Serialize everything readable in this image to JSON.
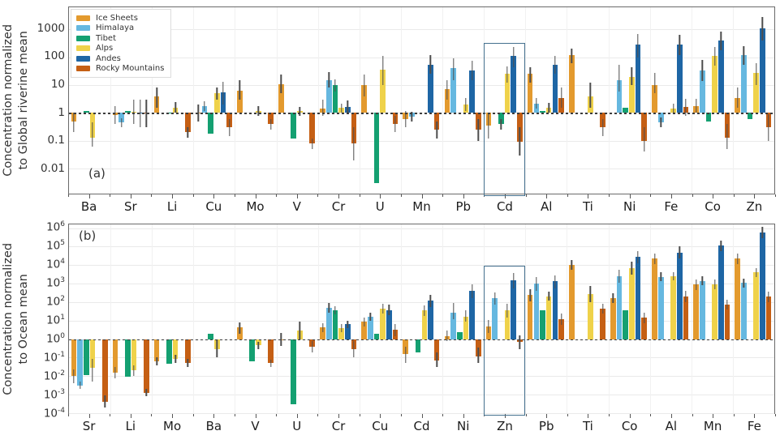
{
  "legend": {
    "items": [
      {
        "label": "Ice Sheets",
        "color": "#E39A2E"
      },
      {
        "label": "Himalaya",
        "color": "#66B8E0"
      },
      {
        "label": "Tibet",
        "color": "#14A071"
      },
      {
        "label": "Alps",
        "color": "#EFD24A"
      },
      {
        "label": "Andes",
        "color": "#1E66A5"
      },
      {
        "label": "Rocky Mountains",
        "color": "#C55F14"
      }
    ]
  },
  "chart_data": [
    {
      "type": "bar",
      "panel_label": "(a)",
      "ylabel": [
        "Concentration normalized",
        "to Global riverine mean"
      ],
      "log_scale": true,
      "baseline_value": 1,
      "y_range_exp": [
        -2.9,
        3.8
      ],
      "tick_style": "plain",
      "yticks": [
        {
          "text": "1000",
          "exp": 3
        },
        {
          "text": "100",
          "exp": 2
        },
        {
          "text": "10",
          "exp": 1
        },
        {
          "text": "1",
          "exp": 0
        },
        {
          "text": "0.1",
          "exp": -1
        },
        {
          "text": "0.01",
          "exp": -2
        }
      ],
      "categories": [
        "Ba",
        "Sr",
        "Li",
        "Cu",
        "Mo",
        "V",
        "Cr",
        "U",
        "Mn",
        "Pb",
        "Cd",
        "Al",
        "Ti",
        "Ni",
        "Fe",
        "Co",
        "Zn"
      ],
      "series": [
        {
          "name": "Ice Sheets",
          "color": "#E39A2E",
          "values": [
            [
              0.5,
              0.2,
              1.0
            ],
            [
              0.85,
              0.4,
              1.8
            ],
            [
              4,
              1.5,
              8.5
            ],
            [
              1.0,
              0.5,
              2.0
            ],
            [
              6.5,
              3,
              15
            ],
            [
              11,
              5,
              24
            ],
            [
              1.4,
              0.8,
              3
            ],
            [
              10,
              4,
              24
            ],
            [
              0.6,
              0.3,
              1.2
            ],
            [
              7,
              3,
              15
            ],
            [
              0.35,
              0.12,
              0.9
            ],
            [
              25,
              12,
              45
            ],
            [
              120,
              60,
              200
            ],
            null,
            [
              10,
              5,
              28
            ],
            [
              1.8,
              1.0,
              3.2
            ],
            [
              3.5,
              1.5,
              8
            ]
          ]
        },
        {
          "name": "Himalaya",
          "color": "#66B8E0",
          "values": [
            null,
            [
              0.45,
              0.3,
              0.65
            ],
            null,
            [
              1.8,
              1.2,
              2.6
            ],
            null,
            null,
            [
              15,
              8,
              30
            ],
            null,
            [
              0.75,
              0.5,
              1.1
            ],
            [
              40,
              15,
              90
            ],
            null,
            [
              2.2,
              1.4,
              3.4
            ],
            null,
            [
              15,
              6,
              55
            ],
            [
              0.45,
              0.3,
              0.7
            ],
            [
              33,
              14,
              80
            ],
            [
              120,
              55,
              260
            ]
          ]
        },
        {
          "name": "Tibet",
          "color": "#14A071",
          "values": [
            [
              1.15,
              null,
              null
            ],
            [
              1.15,
              null,
              null
            ],
            [
              0.95,
              null,
              null
            ],
            [
              0.18,
              null,
              null
            ],
            null,
            [
              0.12,
              null,
              null
            ],
            [
              10,
              6,
              16
            ],
            [
              0.003,
              null,
              null
            ],
            null,
            null,
            [
              0.4,
              0.25,
              0.6
            ],
            [
              1.2,
              null,
              null
            ],
            null,
            [
              1.5,
              null,
              null
            ],
            null,
            [
              0.5,
              null,
              null
            ],
            [
              0.6,
              null,
              null
            ]
          ]
        },
        {
          "name": "Alps",
          "color": "#EFD24A",
          "values": [
            [
              0.13,
              0.06,
              0.45
            ],
            [
              1.1,
              0.4,
              3
            ],
            [
              1.5,
              1.0,
              2.5
            ],
            [
              5,
              3,
              8
            ],
            [
              1.2,
              0.8,
              1.8
            ],
            [
              1.15,
              0.8,
              1.6
            ],
            [
              1.5,
              1.0,
              2.2
            ],
            [
              35,
              10,
              110
            ],
            null,
            [
              2,
              1.2,
              3.5
            ],
            [
              25,
              12,
              48
            ],
            [
              1.5,
              1.0,
              2.3
            ],
            [
              4,
              1.5,
              12
            ],
            [
              20,
              10,
              45
            ],
            [
              1.4,
              0.9,
              2.2
            ],
            [
              110,
              50,
              240
            ],
            [
              28,
              10,
              60
            ]
          ]
        },
        {
          "name": "Andes",
          "color": "#1E66A5",
          "values": [
            null,
            [
              1.0,
              0.3,
              3
            ],
            null,
            [
              5.5,
              2,
              13
            ],
            null,
            null,
            [
              1.7,
              1.0,
              2.8
            ],
            null,
            [
              55,
              25,
              120
            ],
            [
              33,
              15,
              75
            ],
            [
              110,
              45,
              230
            ],
            [
              55,
              25,
              115
            ],
            null,
            [
              280,
              100,
              700
            ],
            [
              290,
              120,
              650
            ],
            [
              400,
              180,
              850
            ],
            [
              1100,
              400,
              2900
            ]
          ]
        },
        {
          "name": "Rocky Mountains",
          "color": "#C55F14",
          "values": [
            null,
            [
              1.0,
              0.3,
              3
            ],
            [
              0.2,
              0.13,
              0.3
            ],
            [
              0.3,
              0.15,
              0.6
            ],
            [
              0.4,
              0.25,
              0.6
            ],
            [
              0.08,
              0.05,
              0.12
            ],
            [
              0.08,
              0.02,
              0.3
            ],
            [
              0.4,
              0.2,
              0.8
            ],
            [
              0.25,
              0.12,
              0.5
            ],
            [
              0.25,
              0.1,
              0.6
            ],
            [
              0.09,
              0.03,
              0.3
            ],
            [
              3.5,
              1.5,
              8
            ],
            [
              0.3,
              0.15,
              0.6
            ],
            [
              0.1,
              0.04,
              0.3
            ],
            [
              1.6,
              0.8,
              3.2
            ],
            [
              0.13,
              0.05,
              0.4
            ],
            [
              0.3,
              0.1,
              0.9
            ]
          ]
        }
      ],
      "highlight": {
        "category": "Cd",
        "top_exp": 2.52,
        "color": "#44708e"
      },
      "show_legend": true
    },
    {
      "type": "bar",
      "panel_label": "(b)",
      "ylabel": [
        "Concentration normalized",
        "to Ocean mean"
      ],
      "log_scale": true,
      "baseline_value": 1,
      "y_range_exp": [
        -4.0,
        6.2
      ],
      "tick_style": "power",
      "yticks": [
        {
          "exp": 6,
          "sup": "6"
        },
        {
          "exp": 5,
          "sup": "5"
        },
        {
          "exp": 4,
          "sup": "4"
        },
        {
          "exp": 3,
          "sup": "3"
        },
        {
          "exp": 2,
          "sup": "2"
        },
        {
          "exp": 1,
          "sup": "1"
        },
        {
          "exp": 0,
          "sup": "0"
        },
        {
          "exp": -1,
          "sup": "-1"
        },
        {
          "exp": -2,
          "sup": "-2"
        },
        {
          "exp": -3,
          "sup": "-3"
        },
        {
          "exp": -4,
          "sup": "-4"
        }
      ],
      "categories": [
        "Sr",
        "Li",
        "Mo",
        "Ba",
        "V",
        "U",
        "Cr",
        "Cu",
        "Cd",
        "Ni",
        "Zn",
        "Pb",
        "Ti",
        "Co",
        "Al",
        "Mn",
        "Fe"
      ],
      "series": [
        {
          "name": "Ice Sheets",
          "color": "#E39A2E",
          "values": [
            [
              0.01,
              0.004,
              0.022
            ],
            [
              0.016,
              0.008,
              0.03
            ],
            [
              0.065,
              0.04,
              0.11
            ],
            null,
            [
              4.3,
              2,
              8
            ],
            [
              1.0,
              0.45,
              2.1
            ],
            [
              4.3,
              2.5,
              7.5
            ],
            [
              8.6,
              5,
              15
            ],
            [
              0.15,
              0.05,
              0.4
            ],
            [
              1.5,
              0.8,
              2.8
            ],
            [
              5,
              2.2,
              11
            ],
            [
              250,
              110,
              520
            ],
            [
              10000,
              5500,
              18000
            ],
            [
              160,
              90,
              290
            ],
            [
              22000,
              11000,
              42000
            ],
            [
              900,
              450,
              1700
            ],
            [
              22000,
              11000,
              42000
            ]
          ]
        },
        {
          "name": "Himalaya",
          "color": "#66B8E0",
          "values": [
            [
              0.003,
              0.002,
              0.005
            ],
            null,
            null,
            null,
            null,
            null,
            [
              50,
              28,
              90
            ],
            [
              17,
              10,
              28
            ],
            null,
            [
              28,
              12,
              90
            ],
            [
              160,
              70,
              340
            ],
            [
              1000,
              400,
              2300
            ],
            null,
            [
              2500,
              1100,
              5800
            ],
            [
              2300,
              1300,
              4000
            ],
            [
              1400,
              800,
              2400
            ],
            [
              1100,
              600,
              1900
            ]
          ]
        },
        {
          "name": "Tibet",
          "color": "#14A071",
          "values": [
            [
              0.012,
              null,
              null
            ],
            [
              0.009,
              null,
              null
            ],
            [
              0.045,
              null,
              null
            ],
            [
              2.0,
              null,
              null
            ],
            [
              0.065,
              null,
              null
            ],
            [
              0.0003,
              null,
              null
            ],
            [
              38,
              22,
              60
            ],
            [
              1.9,
              null,
              null
            ],
            [
              0.2,
              null,
              null
            ],
            [
              2.4,
              null,
              null
            ],
            null,
            [
              37,
              null,
              null
            ],
            null,
            [
              37,
              null,
              null
            ],
            null,
            null,
            null
          ]
        },
        {
          "name": "Alps",
          "color": "#EFD24A",
          "values": [
            [
              0.028,
              0.005,
              0.09
            ],
            [
              0.02,
              0.01,
              0.04
            ],
            [
              0.085,
              0.05,
              0.14
            ],
            [
              0.3,
              0.1,
              0.95
            ],
            [
              0.46,
              0.3,
              0.7
            ],
            [
              3,
              1,
              9
            ],
            [
              4,
              2.5,
              6.5
            ],
            [
              45,
              25,
              80
            ],
            [
              35,
              18,
              65
            ],
            [
              17,
              9,
              35
            ],
            [
              37,
              15,
              85
            ],
            [
              210,
              120,
              380
            ],
            [
              260,
              100,
              750
            ],
            [
              7000,
              3200,
              15000
            ],
            [
              2500,
              1500,
              4200
            ],
            [
              900,
              500,
              1600
            ],
            [
              4000,
              2200,
              7200
            ]
          ]
        },
        {
          "name": "Andes",
          "color": "#1E66A5",
          "values": [
            null,
            null,
            null,
            null,
            null,
            null,
            [
              6.4,
              4,
              10
            ],
            [
              38,
              20,
              70
            ],
            [
              120,
              55,
              240
            ],
            [
              400,
              160,
              950
            ],
            [
              1500,
              550,
              3800
            ],
            [
              1300,
              550,
              2900
            ],
            null,
            [
              27000,
              12000,
              58000
            ],
            [
              48000,
              22000,
              100000
            ],
            [
              110000,
              55000,
              210000
            ],
            [
              600000,
              280000,
              1200000
            ]
          ]
        },
        {
          "name": "Rocky Mountains",
          "color": "#C55F14",
          "values": [
            [
              0.0004,
              0.0002,
              0.0009
            ],
            [
              0.0013,
              0.0008,
              0.002
            ],
            [
              0.053,
              0.03,
              0.09
            ],
            null,
            [
              0.05,
              0.03,
              0.08
            ],
            [
              0.4,
              0.2,
              0.8
            ],
            [
              0.28,
              0.1,
              0.8
            ],
            [
              3.2,
              1.5,
              6.5
            ],
            [
              0.07,
              0.03,
              0.2
            ],
            [
              0.12,
              0.05,
              0.35
            ],
            [
              0.7,
              0.3,
              1.6
            ],
            [
              12,
              6,
              24
            ],
            [
              45,
              25,
              80
            ],
            [
              14,
              7,
              26
            ],
            [
              200,
              100,
              390
            ],
            [
              75,
              40,
              140
            ],
            [
              200,
              100,
              380
            ]
          ]
        }
      ],
      "highlight": {
        "category": "Zn",
        "top_exp": 3.97,
        "color": "#44708e"
      },
      "show_legend": false
    }
  ]
}
